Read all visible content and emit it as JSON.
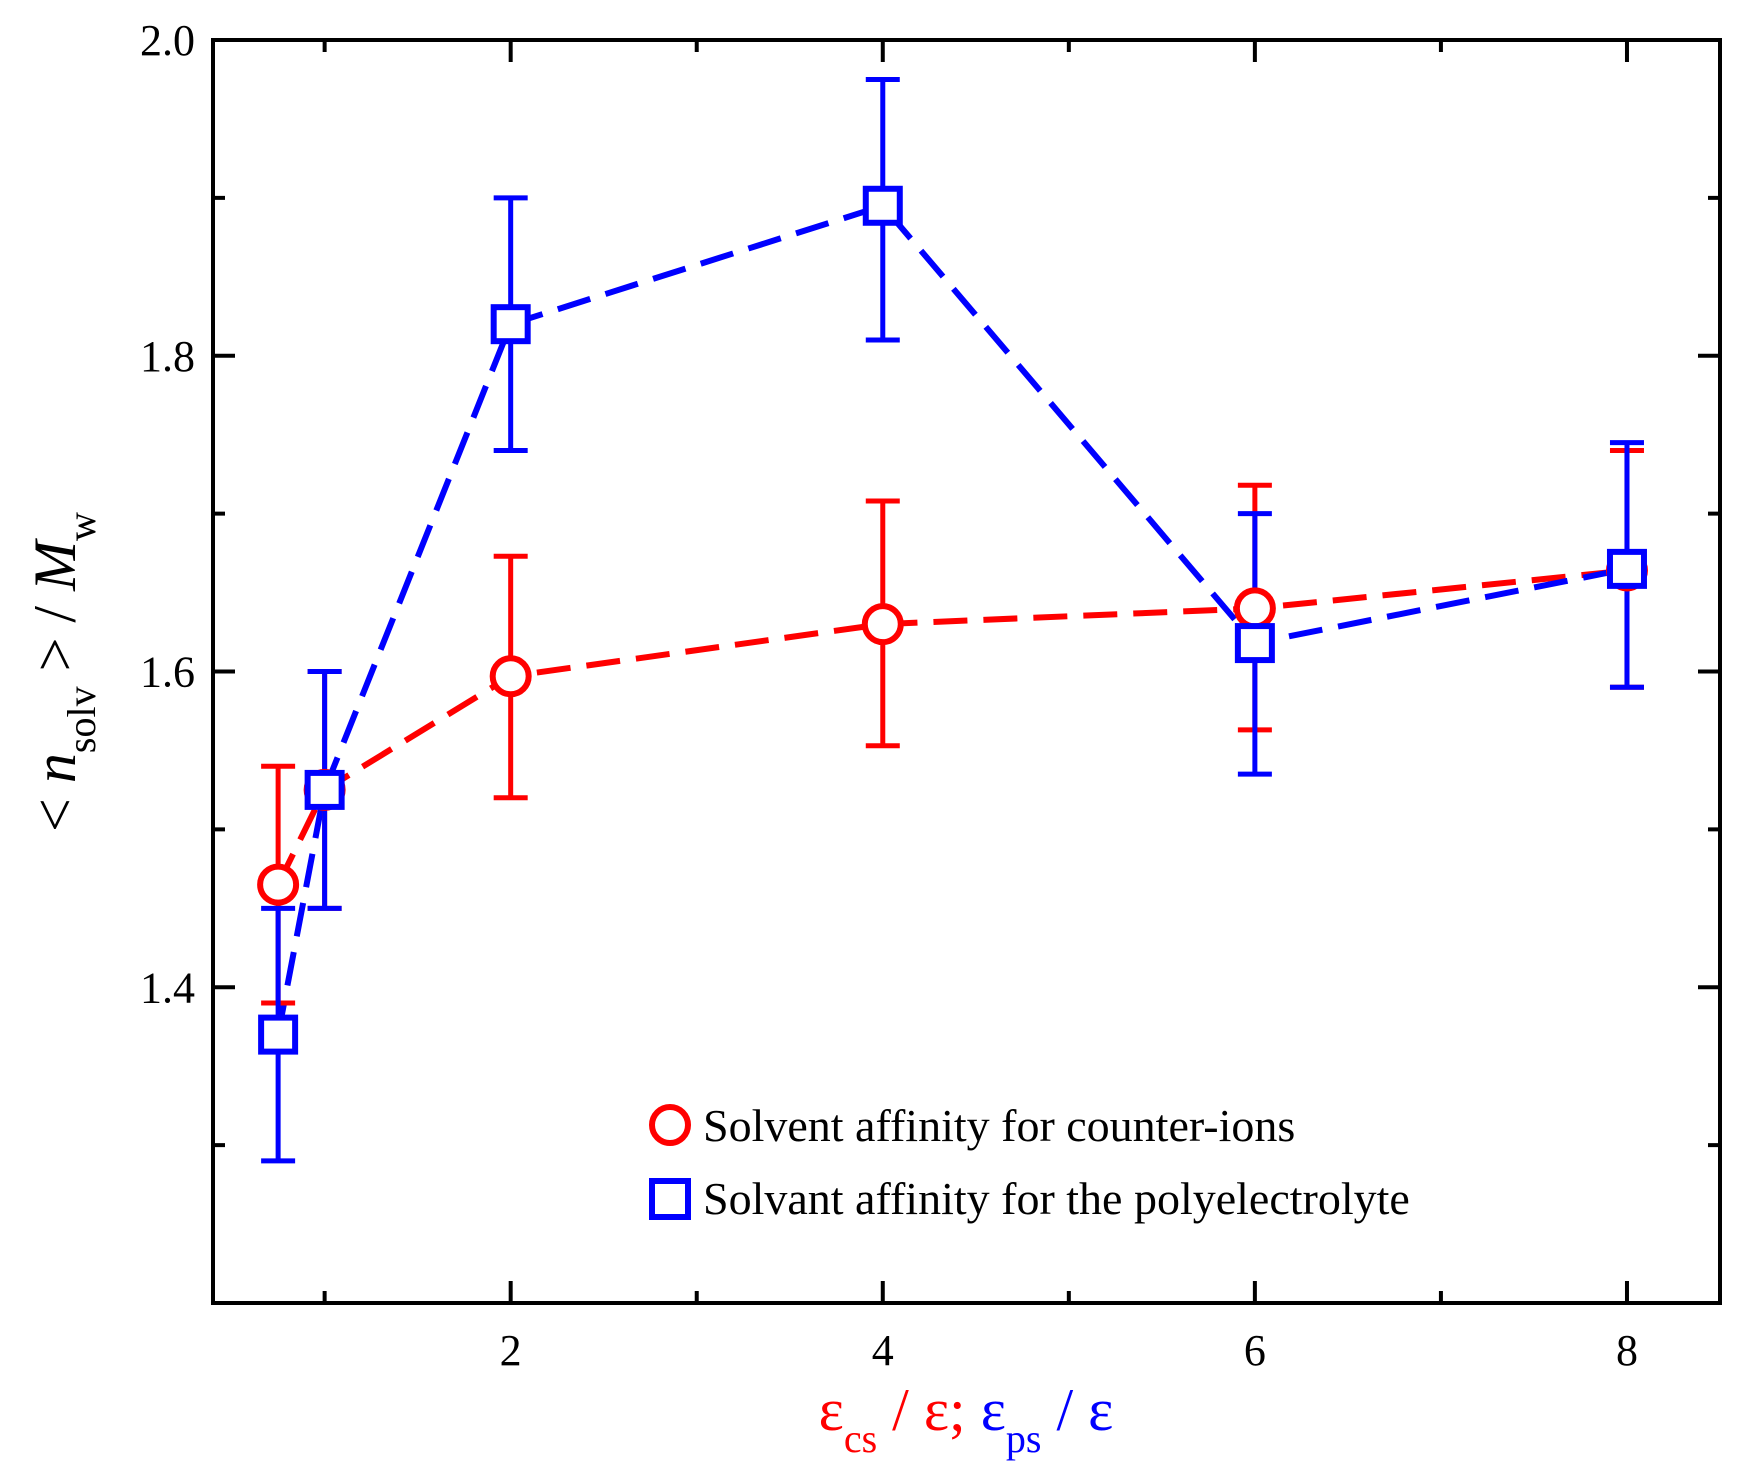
{
  "chart_data": {
    "type": "line",
    "title": "",
    "xlim": [
      0.4,
      8.5
    ],
    "ylim": [
      1.2,
      2.0
    ],
    "grid": false,
    "legend_position": "bottom-right",
    "x_ticks": [
      2,
      4,
      6,
      8
    ],
    "x_tick_labels": [
      "2",
      "4",
      "6",
      "8"
    ],
    "x_minor_ticks": [
      1,
      3,
      5,
      7
    ],
    "y_ticks": [
      1.4,
      1.6,
      1.8,
      2.0
    ],
    "y_tick_labels": [
      "1.4",
      "1.6",
      "1.8",
      "2.0"
    ],
    "y_minor_ticks": [
      1.3,
      1.5,
      1.7,
      1.9
    ],
    "xlabel": {
      "part1_symbol": "ε",
      "part1_sub": "cs",
      "part1_rest": " / ε;",
      "part2_symbol": " ε",
      "part2_sub": "ps",
      "part2_rest": " / ε"
    },
    "ylabel": {
      "prefix": "< ",
      "var": "n",
      "sub": "solv",
      "middle": " > / ",
      "var2": "M",
      "sub2": "w"
    },
    "series": [
      {
        "name": "Solvent affinity for counter-ions",
        "marker": "circle",
        "color": "#ff0000",
        "x": [
          0.75,
          1,
          2,
          4,
          6,
          8
        ],
        "y": [
          1.465,
          1.525,
          1.597,
          1.63,
          1.64,
          1.664
        ],
        "err_low": [
          1.39,
          1.45,
          1.52,
          1.553,
          1.563,
          1.59
        ],
        "err_high": [
          1.54,
          1.6,
          1.673,
          1.708,
          1.718,
          1.74
        ]
      },
      {
        "name": "Solvant affinity for the polyelectrolyte",
        "marker": "square",
        "color": "#0000ff",
        "x": [
          0.75,
          1,
          2,
          4,
          6,
          8
        ],
        "y": [
          1.37,
          1.525,
          1.82,
          1.895,
          1.618,
          1.665
        ],
        "err_low": [
          1.29,
          1.45,
          1.74,
          1.81,
          1.535,
          1.59
        ],
        "err_high": [
          1.45,
          1.6,
          1.9,
          1.975,
          1.7,
          1.745
        ]
      }
    ]
  }
}
